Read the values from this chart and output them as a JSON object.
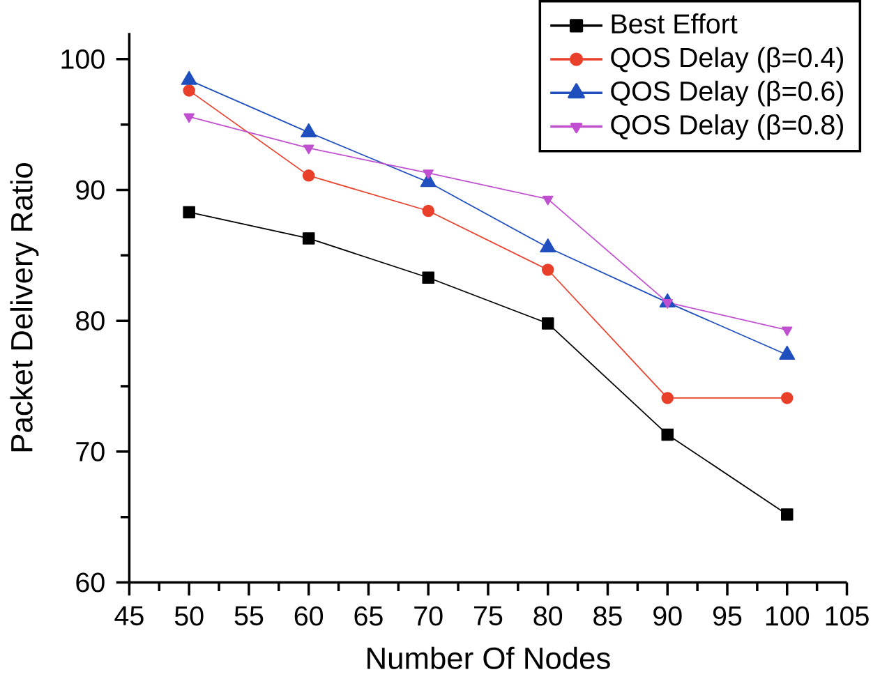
{
  "chart_data": {
    "type": "line",
    "xlabel": "Number Of Nodes",
    "ylabel": "Packet Delivery Ratio",
    "x": [
      50,
      60,
      70,
      80,
      90,
      100
    ],
    "series": [
      {
        "name": "Best Effort",
        "color": "#000000",
        "marker": "square",
        "values": [
          88.3,
          86.3,
          83.3,
          79.8,
          71.3,
          65.2
        ]
      },
      {
        "name": "QOS Delay (β=0.4)",
        "color": "#e8402a",
        "marker": "circle",
        "values": [
          97.6,
          91.1,
          88.4,
          83.9,
          74.1,
          74.1
        ]
      },
      {
        "name": "QOS Delay (β=0.6)",
        "color": "#1f4fbf",
        "marker": "triangle",
        "values": [
          98.4,
          94.4,
          90.6,
          85.6,
          81.4,
          77.4
        ]
      },
      {
        "name": "QOS Delay (β=0.8)",
        "color": "#c050d0",
        "marker": "triangle down",
        "values": [
          95.6,
          93.2,
          91.3,
          89.3,
          81.4,
          79.3
        ]
      }
    ],
    "xlim": [
      45,
      105
    ],
    "ylim": [
      60,
      102
    ],
    "xticks": [
      45,
      50,
      55,
      60,
      65,
      70,
      75,
      80,
      85,
      90,
      95,
      100,
      105
    ],
    "yticks": [
      60,
      70,
      80,
      90,
      100
    ],
    "grid": false,
    "legend": "top right",
    "line_style": "solid"
  }
}
